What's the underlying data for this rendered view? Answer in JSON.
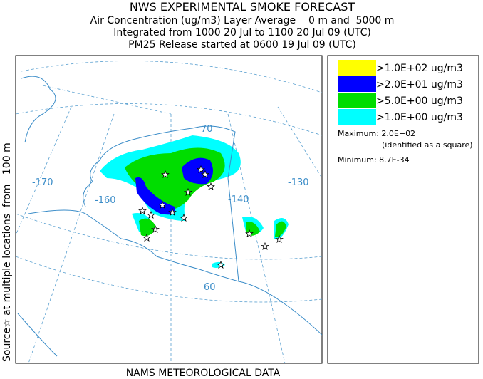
{
  "header": {
    "title": "NWS EXPERIMENTAL SMOKE FORECAST",
    "lines": [
      "Air Concentration (ug/m3) Layer Average    0 m and  5000 m",
      "Integrated from 1000 20 Jul to 1100 20 Jul 09 (UTC)",
      "PM25 Release started at 0600 19 Jul 09 (UTC)"
    ]
  },
  "side_label": "Source☆ at multiple locations  from   100 m",
  "footer": "NAMS METEOROLOGICAL DATA",
  "map": {
    "longitude_labels": [
      "-170",
      "-160",
      "-140",
      "-130"
    ],
    "latitude_labels": [
      "70",
      "60"
    ]
  },
  "legend": {
    "items": [
      {
        "label": ">1.0E+02 ug/m3",
        "color": "#ffff00"
      },
      {
        "label": ">2.0E+01 ug/m3",
        "color": "#0000ff"
      },
      {
        "label": ">5.0E+00 ug/m3",
        "color": "#00dd00"
      },
      {
        "label": ">1.0E+00 ug/m3",
        "color": "#00ffff"
      }
    ],
    "maximum": "Maximum: 2.0E+02",
    "maximum_note": "(identified as a square)",
    "minimum": "Minimum: 8.7E-34"
  }
}
